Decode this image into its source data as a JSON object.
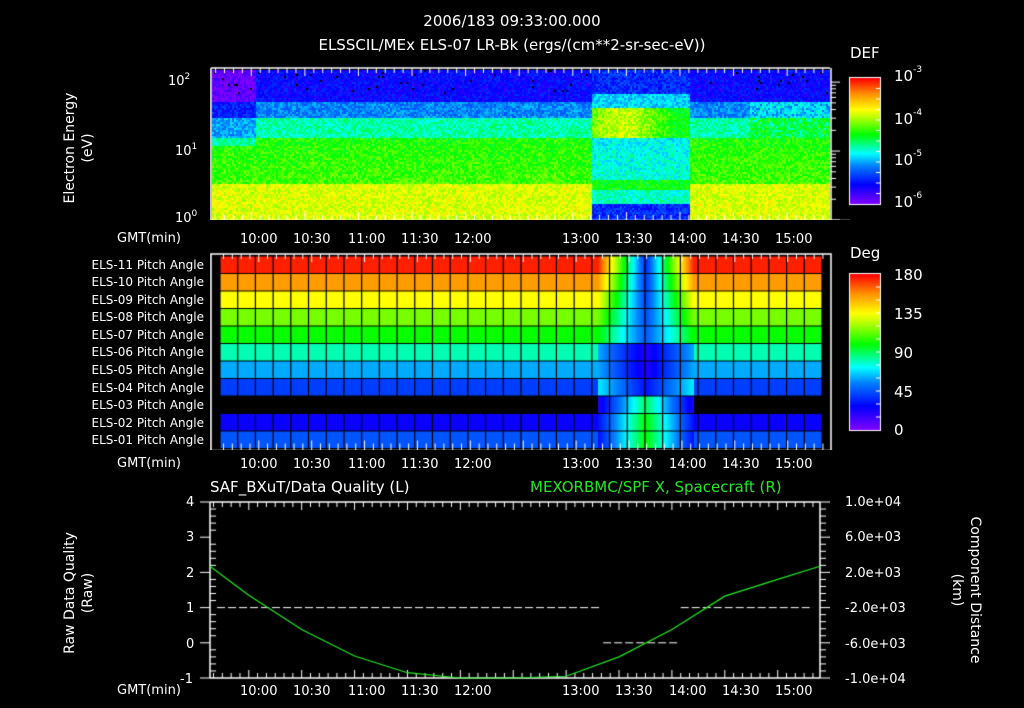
{
  "header": {
    "timestamp": "2006/183 09:33:00.000",
    "subtitle": "ELSSCIL/MEx ELS-07 LR-Bk  (ergs/(cm**2-sr-sec-eV))"
  },
  "time_axis": {
    "label": "GMT(min)",
    "ticks": [
      "10:00",
      "10:30",
      "11:00",
      "11:30",
      "12:00",
      "13:00",
      "13:30",
      "14:00",
      "14:30",
      "15:00"
    ]
  },
  "panel1": {
    "ylabel": "Electron Energy",
    "yunit": "(eV)",
    "yticks": [
      {
        "base": "10",
        "exp": "2"
      },
      {
        "base": "10",
        "exp": "1"
      },
      {
        "base": "10",
        "exp": "0"
      }
    ],
    "colorbar": {
      "title": "DEF",
      "labels": [
        {
          "base": "10",
          "exp": "-3"
        },
        {
          "base": "10",
          "exp": "-4"
        },
        {
          "base": "10",
          "exp": "-5"
        },
        {
          "base": "10",
          "exp": "-6"
        }
      ]
    }
  },
  "panel2": {
    "rows": [
      "ELS-11 Pitch Angle",
      "ELS-10 Pitch Angle",
      "ELS-09 Pitch Angle",
      "ELS-08 Pitch Angle",
      "ELS-07 Pitch Angle",
      "ELS-06 Pitch Angle",
      "ELS-05 Pitch Angle",
      "ELS-04 Pitch Angle",
      "ELS-03 Pitch Angle",
      "ELS-02 Pitch Angle",
      "ELS-01 Pitch Angle"
    ],
    "colorbar": {
      "title": "Deg",
      "labels": [
        "180",
        "135",
        "90",
        "45",
        "0"
      ]
    }
  },
  "panel3": {
    "left_title": "SAF_BXuT/Data Quality (L)",
    "right_title": "MEXORBMC/SPF X, Spacecraft (R)",
    "right_title_color": "#22e822",
    "ylabel_left": "Raw Data Quality",
    "yunit_left": "(Raw)",
    "ylabel_right": "Component Distance",
    "yunit_right": "(km)",
    "yticks_left": [
      "4",
      "3",
      "2",
      "1",
      "0",
      "-1"
    ],
    "yticks_right": [
      "1.0e+04",
      "6.0e+03",
      "2.0e+03",
      "-2.0e+03",
      "-6.0e+03",
      "-1.0e+04"
    ]
  },
  "chart_data": [
    {
      "type": "heatmap",
      "title": "ELSSCIL/MEx ELS-07 LR-Bk (ergs/(cm**2-sr-sec-eV))",
      "subtitle": "2006/183 09:33:00.000",
      "xlabel": "GMT(min)",
      "ylabel": "Electron Energy (eV)",
      "x_ticks": [
        "10:00",
        "10:30",
        "11:00",
        "11:30",
        "12:00",
        "13:00",
        "13:30",
        "14:00",
        "14:30",
        "15:00"
      ],
      "x_range": [
        "09:38",
        "15:24"
      ],
      "y_scale": "log",
      "ylim": [
        1,
        150
      ],
      "colorbar": {
        "label": "DEF",
        "scale": "log",
        "range": [
          1e-06,
          0.001
        ]
      },
      "features": [
        {
          "time": "09:38-13:10",
          "description": "Steady high flux (~1e-4) below ~30 eV; low flux (~1e-6) above ~50 eV"
        },
        {
          "time": "13:10-14:05",
          "description": "Depleted flux at low energies (~1e-5), band of enhanced flux near 40-60 eV and around 4-5 eV"
        },
        {
          "time": "14:05-15:24",
          "description": "Return to steady high flux below ~30 eV with intermittent enhancements near 50-100 eV"
        }
      ]
    },
    {
      "type": "heatmap",
      "title": "ELS Pitch Angle",
      "xlabel": "GMT(min)",
      "categories": [
        "ELS-11",
        "ELS-10",
        "ELS-09",
        "ELS-08",
        "ELS-07",
        "ELS-06",
        "ELS-05",
        "ELS-04",
        "ELS-03",
        "ELS-02",
        "ELS-01"
      ],
      "colorbar": {
        "label": "Deg",
        "range": [
          0,
          180
        ],
        "ticks": [
          0,
          45,
          90,
          135,
          180
        ]
      },
      "values_outside_13:15-14:10": [
        175,
        155,
        135,
        115,
        100,
        80,
        60,
        40,
        null,
        25,
        45
      ],
      "notes": "ELS-03 has no data except between ~13:15 and ~14:10; pitch angles vary strongly between 13:15 and 14:10"
    },
    {
      "type": "line",
      "title_left": "SAF_BXuT/Data Quality (L)",
      "title_right": "MEXORBMC/SPF X, Spacecraft (R)",
      "xlabel": "GMT(min)",
      "ylabel_left": "Raw Data Quality (Raw)",
      "ylabel_right": "Component Distance (km)",
      "ylim_left": [
        -1,
        4
      ],
      "ylim_right": [
        -10000,
        10000
      ],
      "series": [
        {
          "name": "Data Quality",
          "axis": "left",
          "color": "#ffffff",
          "style": "dashed",
          "x": [
            "09:38",
            "13:20",
            "13:20",
            "14:05",
            "14:05",
            "15:24"
          ],
          "y": [
            1,
            1,
            0,
            0,
            1,
            1
          ]
        },
        {
          "name": "SPF X Spacecraft",
          "axis": "right",
          "color": "#22e822",
          "style": "solid",
          "x": [
            "09:38",
            "10:00",
            "10:30",
            "11:00",
            "11:30",
            "12:00",
            "12:30",
            "13:00",
            "13:30",
            "14:00",
            "14:30",
            "15:00",
            "15:24"
          ],
          "y": [
            2700,
            -600,
            -4500,
            -7500,
            -9400,
            -10000,
            -10000,
            -9800,
            -7600,
            -4500,
            -700,
            1200,
            2700
          ]
        }
      ]
    }
  ]
}
